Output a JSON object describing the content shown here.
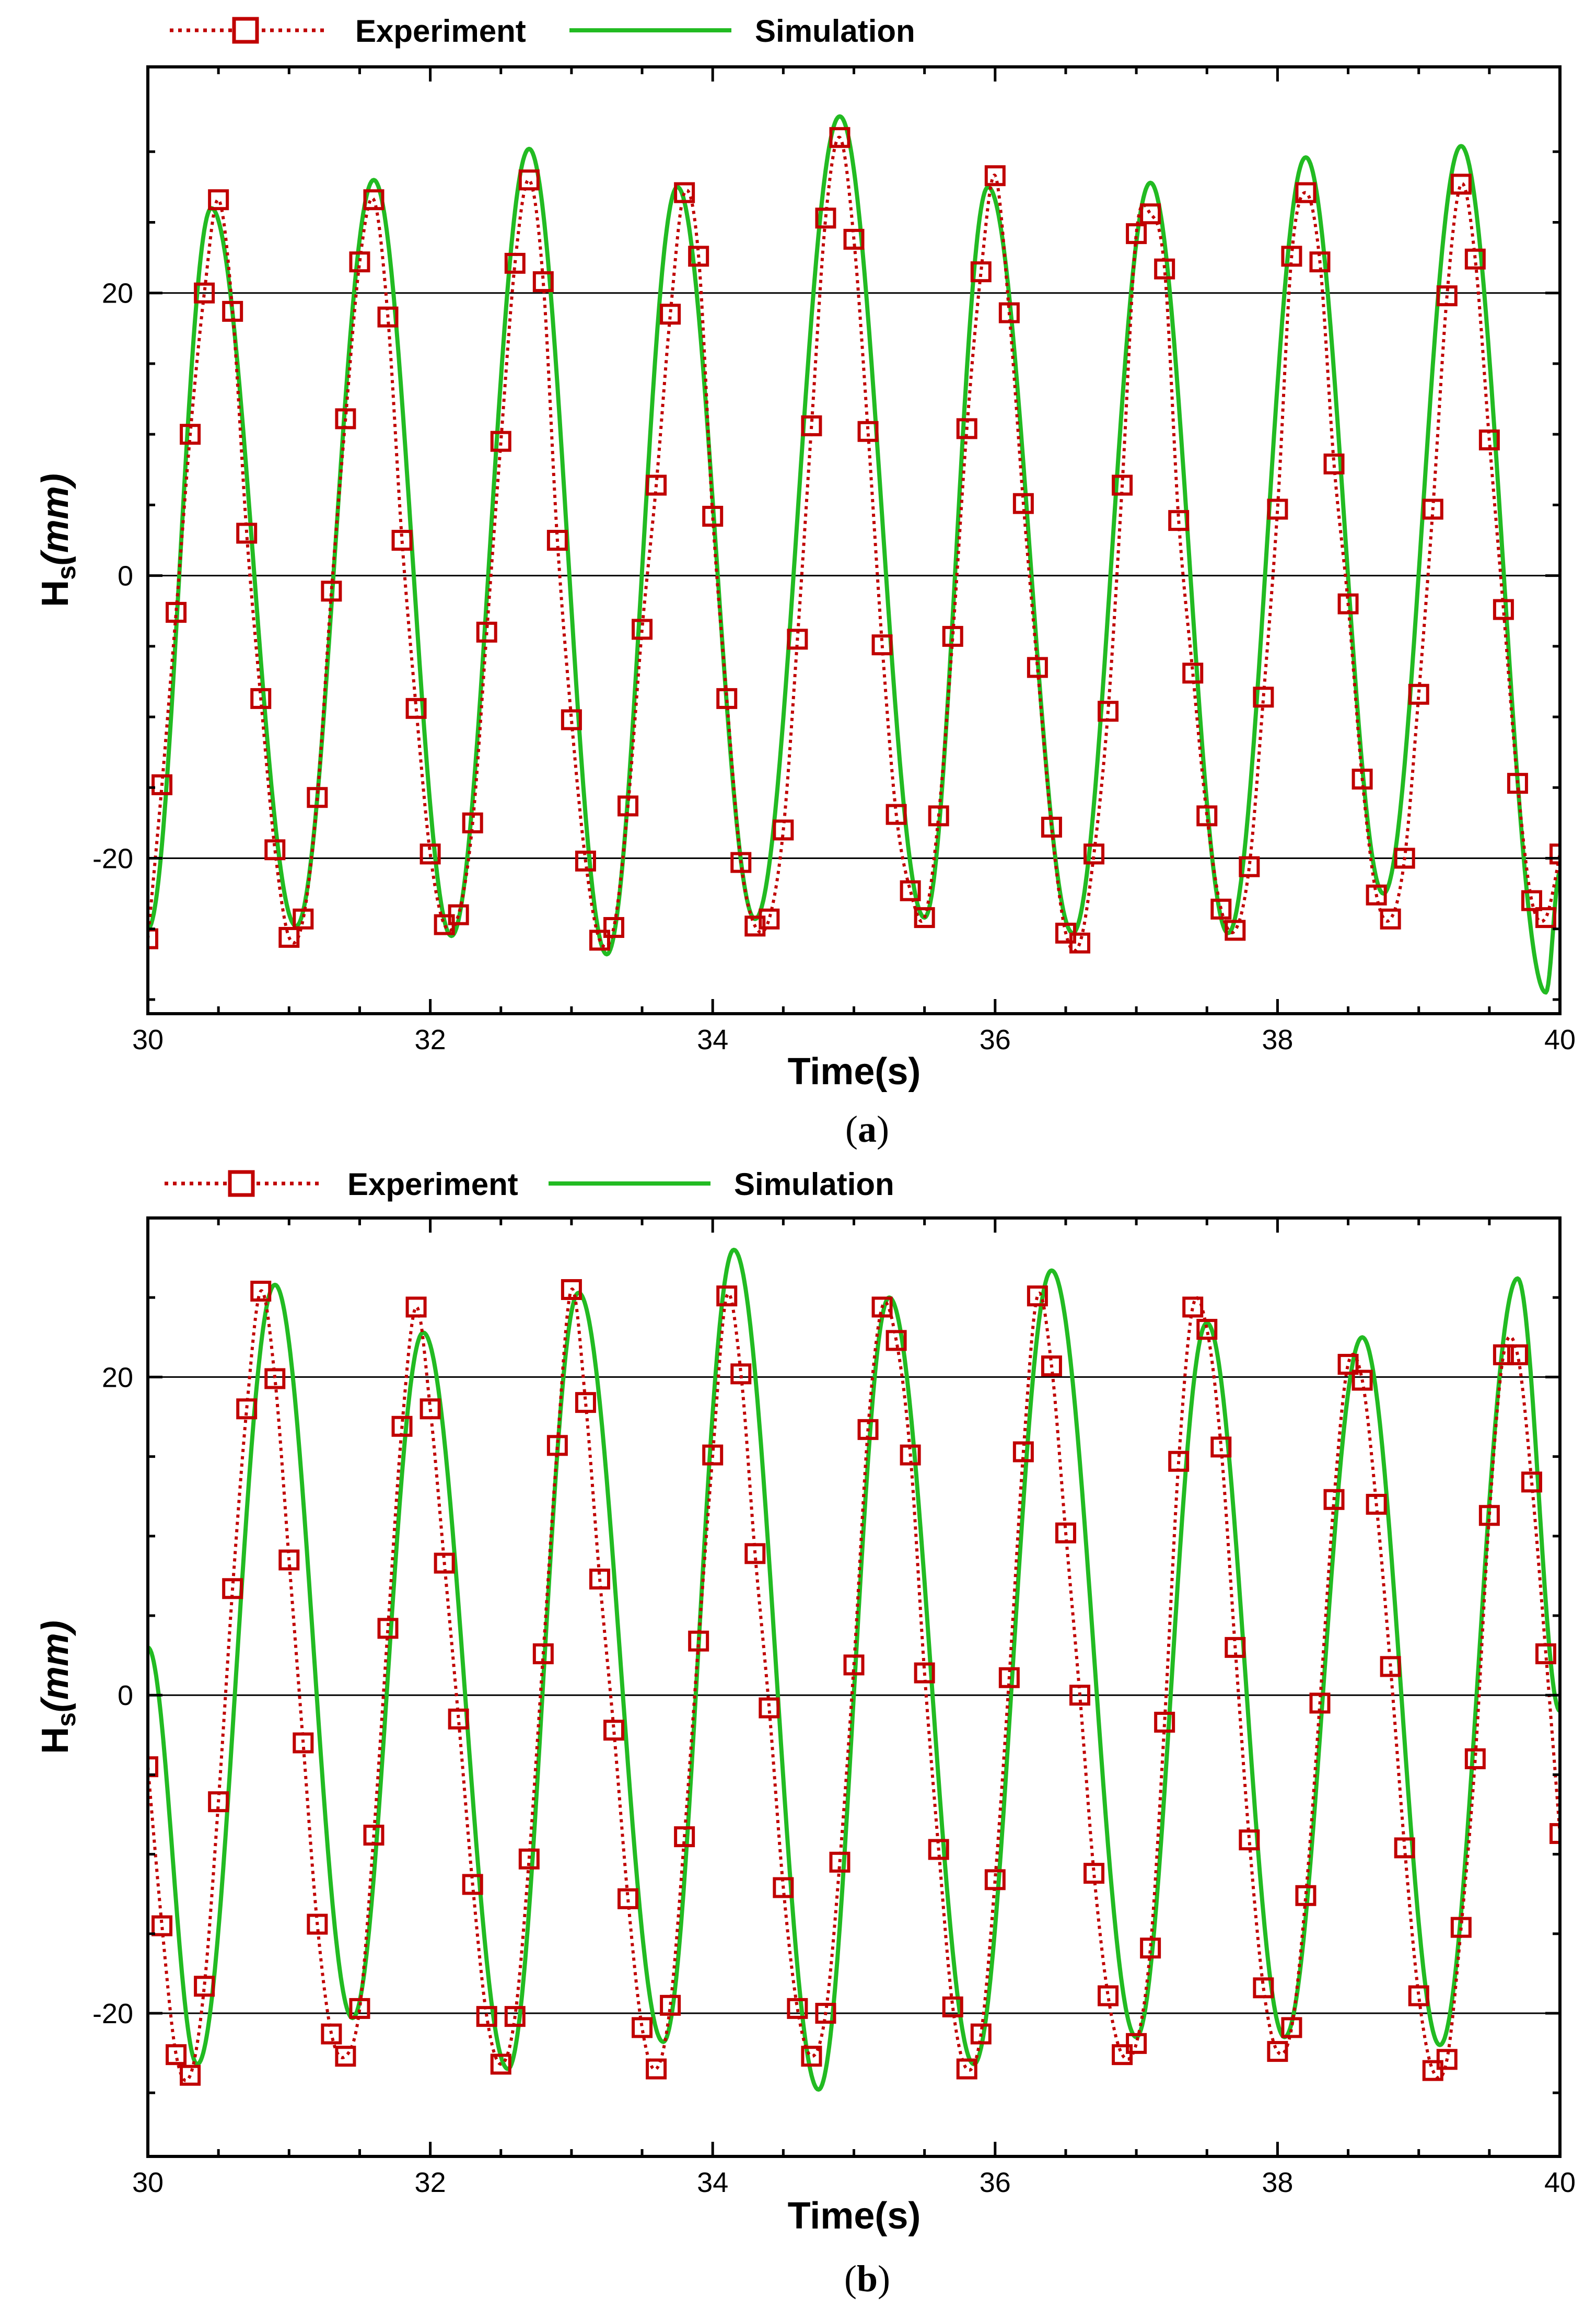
{
  "colors": {
    "experiment": "#c00000",
    "simulation": "#22bb22",
    "axis": "#000000",
    "grid": "#000000",
    "background": "#ffffff"
  },
  "legend": {
    "experiment_label": "Experiment",
    "simulation_label": "Simulation",
    "experiment_marker": "hollow-square-marker",
    "experiment_line": "dotted",
    "simulation_line": "solid"
  },
  "chart_data": [
    {
      "id": "a",
      "type": "line",
      "caption_open": "(",
      "caption_letter": "a",
      "caption_close": ")",
      "xlabel": "Time(s)",
      "ylabel_main": "H",
      "ylabel_sub": "s",
      "ylabel_unit": "(mm)",
      "xlim": [
        30,
        40
      ],
      "ylim": [
        -31,
        36
      ],
      "xticks": [
        30,
        32,
        34,
        36,
        38,
        40
      ],
      "xtick_labels": [
        "30",
        "32",
        "34",
        "36",
        "38",
        "40"
      ],
      "yticks": [
        -20,
        0,
        20
      ],
      "ytick_labels": [
        "-20",
        "0",
        "20"
      ],
      "grid_y": true,
      "legend_position": "top-left, above plot",
      "series": [
        {
          "name": "Experiment",
          "x": [
            30.0,
            30.1,
            30.2,
            30.3,
            30.4,
            30.5,
            30.6,
            30.7,
            30.8,
            30.9,
            31.0,
            31.1,
            31.2,
            31.3,
            31.4,
            31.5,
            31.6,
            31.7,
            31.8,
            31.9,
            32.0,
            32.1,
            32.2,
            32.3,
            32.4,
            32.5,
            32.6,
            32.7,
            32.8,
            32.9,
            33.0,
            33.1,
            33.2,
            33.3,
            33.4,
            33.5,
            33.6,
            33.7,
            33.8,
            33.9,
            34.0,
            34.1,
            34.2,
            34.3,
            34.4,
            34.5,
            34.6,
            34.7,
            34.8,
            34.9,
            35.0,
            35.1,
            35.2,
            35.3,
            35.4,
            35.5,
            35.6,
            35.7,
            35.8,
            35.9,
            36.0,
            36.1,
            36.2,
            36.3,
            36.4,
            36.5,
            36.6,
            36.7,
            36.8,
            36.9,
            37.0,
            37.1,
            37.2,
            37.3,
            37.4,
            37.5,
            37.6,
            37.7,
            37.8,
            37.9,
            38.0,
            38.1,
            38.2,
            38.3,
            38.4,
            38.5,
            38.6,
            38.7,
            38.8,
            38.9,
            39.0,
            39.1,
            39.2,
            39.3,
            39.4,
            39.5,
            39.6,
            39.7,
            39.8,
            39.9,
            40.0
          ],
          "y": [
            -25.7,
            -14.8,
            -2.6,
            10.0,
            20.0,
            26.6,
            18.7,
            3.0,
            -8.7,
            -19.4,
            -25.6,
            -24.3,
            -15.7,
            -1.1,
            11.1,
            22.2,
            26.6,
            18.3,
            2.5,
            -9.4,
            -19.7,
            -24.7,
            -24.0,
            -17.5,
            -4.0,
            9.5,
            22.1,
            28.0,
            20.8,
            2.5,
            -10.2,
            -20.2,
            -25.8,
            -24.9,
            -16.3,
            -3.8,
            6.4,
            18.5,
            27.1,
            22.6,
            4.2,
            -8.7,
            -20.3,
            -24.8,
            -24.3,
            -18.0,
            -4.5,
            10.6,
            25.3,
            31.0,
            23.8,
            10.2,
            -4.9,
            -16.9,
            -22.3,
            -24.2,
            -17.0,
            -4.3,
            10.4,
            21.5,
            28.3,
            18.6,
            5.1,
            -6.5,
            -17.8,
            -25.3,
            -26.0,
            -19.7,
            -9.6,
            6.4,
            24.2,
            25.6,
            21.7,
            3.9,
            -6.9,
            -17.0,
            -23.6,
            -25.1,
            -20.6,
            -8.6,
            4.7,
            22.6,
            27.1,
            22.2,
            7.9,
            -2.0,
            -14.4,
            -22.6,
            -24.3,
            -20.0,
            -8.4,
            4.7,
            19.8,
            27.7,
            22.4,
            9.6,
            -2.4,
            -14.7,
            -23.0,
            -24.2,
            -19.7
          ]
        },
        {
          "name": "Simulation",
          "peak_times": [
            30.45,
            31.6,
            32.7,
            33.75,
            34.9,
            35.95,
            37.1,
            38.2,
            39.3
          ],
          "peak_values": [
            26.0,
            28.0,
            30.2,
            27.5,
            32.5,
            27.5,
            27.8,
            29.6,
            30.4
          ],
          "trough_times": [
            31.05,
            32.15,
            33.25,
            34.3,
            35.5,
            36.55,
            37.65,
            38.75,
            39.9
          ],
          "trough_values": [
            -24.8,
            -25.5,
            -26.8,
            -24.3,
            -24.2,
            -25.3,
            -25.3,
            -22.5,
            -29.5
          ],
          "start_value": -25.0,
          "end_value": -21.0
        }
      ]
    },
    {
      "id": "b",
      "type": "line",
      "caption_open": "(",
      "caption_letter": "b",
      "caption_close": ")",
      "xlabel": "Time(s)",
      "ylabel_main": "H",
      "ylabel_sub": "s",
      "ylabel_unit": "(mm)",
      "xlim": [
        30,
        40
      ],
      "ylim": [
        -29,
        30
      ],
      "xticks": [
        30,
        32,
        34,
        36,
        38,
        40
      ],
      "xtick_labels": [
        "30",
        "32",
        "34",
        "36",
        "38",
        "40"
      ],
      "yticks": [
        -20,
        0,
        20
      ],
      "ytick_labels": [
        "-20",
        "0",
        "20"
      ],
      "grid_y": true,
      "legend_position": "top-left, above plot",
      "series": [
        {
          "name": "Experiment",
          "x": [
            30.0,
            30.1,
            30.2,
            30.3,
            30.4,
            30.5,
            30.6,
            30.7,
            30.8,
            30.9,
            31.0,
            31.1,
            31.2,
            31.3,
            31.4,
            31.5,
            31.6,
            31.7,
            31.8,
            31.9,
            32.0,
            32.1,
            32.2,
            32.3,
            32.4,
            32.5,
            32.6,
            32.7,
            32.8,
            32.9,
            33.0,
            33.1,
            33.2,
            33.3,
            33.4,
            33.5,
            33.6,
            33.7,
            33.8,
            33.9,
            34.0,
            34.1,
            34.2,
            34.3,
            34.4,
            34.5,
            34.6,
            34.7,
            34.8,
            34.9,
            35.0,
            35.1,
            35.2,
            35.3,
            35.4,
            35.5,
            35.6,
            35.7,
            35.8,
            35.9,
            36.0,
            36.1,
            36.2,
            36.3,
            36.4,
            36.5,
            36.6,
            36.7,
            36.8,
            36.9,
            37.0,
            37.1,
            37.2,
            37.3,
            37.4,
            37.5,
            37.6,
            37.7,
            37.8,
            37.9,
            38.0,
            38.1,
            38.2,
            38.3,
            38.4,
            38.5,
            38.6,
            38.7,
            38.8,
            38.9,
            39.0,
            39.1,
            39.2,
            39.3,
            39.4,
            39.5,
            39.6,
            39.7,
            39.8,
            39.9,
            40.0
          ],
          "y": [
            -4.5,
            -14.5,
            -22.6,
            -23.9,
            -18.3,
            -6.7,
            6.7,
            18.0,
            25.4,
            19.9,
            8.5,
            -3.0,
            -14.4,
            -21.3,
            -22.7,
            -19.7,
            -8.8,
            4.2,
            16.9,
            24.4,
            18.0,
            8.3,
            -1.5,
            -11.9,
            -20.2,
            -23.2,
            -20.2,
            -10.3,
            2.6,
            15.7,
            25.5,
            18.4,
            7.3,
            -2.2,
            -12.8,
            -20.9,
            -23.5,
            -19.5,
            -8.9,
            3.4,
            15.1,
            25.1,
            20.2,
            8.9,
            -0.8,
            -12.1,
            -19.7,
            -22.7,
            -20.0,
            -10.5,
            1.9,
            16.7,
            24.4,
            22.3,
            15.1,
            1.4,
            -9.7,
            -19.6,
            -23.5,
            -21.3,
            -11.6,
            1.1,
            15.3,
            25.1,
            20.7,
            10.2,
            0.0,
            -11.2,
            -18.9,
            -22.6,
            -21.9,
            -15.9,
            -1.7,
            14.7,
            24.4,
            23.0,
            15.6,
            3.0,
            -9.1,
            -18.4,
            -22.4,
            -20.9,
            -12.6,
            -0.5,
            12.3,
            20.8,
            19.8,
            12.0,
            1.8,
            -9.6,
            -18.9,
            -23.6,
            -22.9,
            -14.6,
            -4.0,
            11.3,
            21.4,
            21.4,
            13.4,
            2.6,
            -8.7
          ]
        },
        {
          "name": "Simulation",
          "peak_times": [
            30.9,
            31.95,
            33.05,
            34.15,
            35.25,
            36.4,
            37.5,
            38.6,
            39.7
          ],
          "peak_values": [
            25.8,
            22.8,
            25.3,
            28.0,
            25.0,
            26.7,
            23.4,
            22.5,
            26.2
          ],
          "trough_times": [
            30.35,
            31.45,
            32.55,
            33.65,
            34.75,
            35.85,
            37.0,
            38.05,
            39.15
          ],
          "trough_values": [
            -23.2,
            -20.3,
            -23.5,
            -21.8,
            -24.8,
            -23.2,
            -21.5,
            -21.5,
            -22.0
          ],
          "start_value": 3.0,
          "end_value": -1.0
        }
      ]
    }
  ]
}
